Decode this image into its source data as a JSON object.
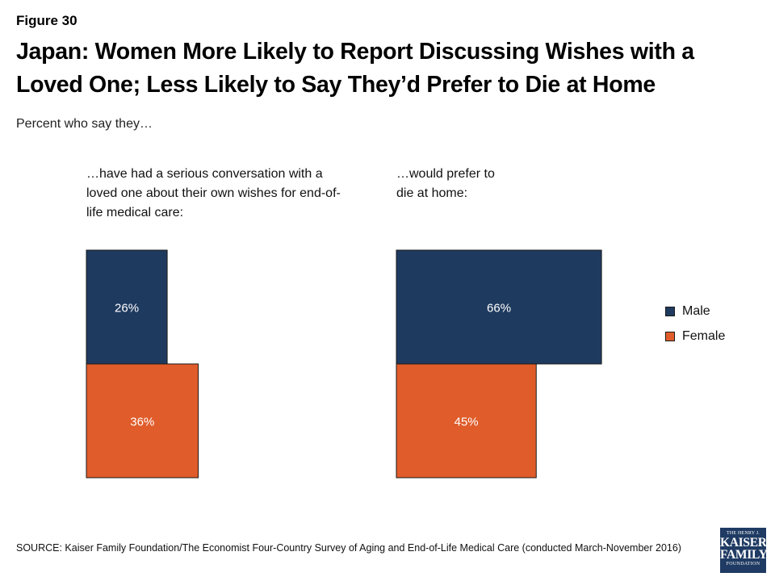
{
  "figure_label": "Figure 30",
  "colors": {
    "male": "#1f3a5f",
    "female": "#e05c2a",
    "bar_border": "#1a1a1a",
    "label_text": "#ffffff"
  },
  "chart_data": {
    "type": "bar",
    "title": "Japan: Women More Likely to Report Discussing Wishes with a Loved One; Less Likely to Say They’d Prefer to Die at Home",
    "subtitle": "Percent who say they…",
    "orientation": "horizontal",
    "legend_position": "right",
    "grid": false,
    "xlim": [
      0,
      100
    ],
    "series": [
      {
        "name": "Male"
      },
      {
        "name": "Female"
      }
    ],
    "panels": [
      {
        "label": "…have had a serious conversation with a loved one about their own wishes for end-of-life medical care:",
        "values": [
          26,
          36
        ],
        "data_labels": [
          "26%",
          "36%"
        ]
      },
      {
        "label": "…would prefer to die at home:",
        "values": [
          66,
          45
        ],
        "data_labels": [
          "66%",
          "45%"
        ]
      }
    ]
  },
  "source": "SOURCE: Kaiser Family Foundation/The Economist Four-Country Survey of Aging and End-of-Life Medical Care (conducted March-November 2016)",
  "logo": {
    "top": "THE HENRY J.",
    "line1": "KAISER",
    "line2": "FAMILY",
    "bottom": "FOUNDATION"
  }
}
